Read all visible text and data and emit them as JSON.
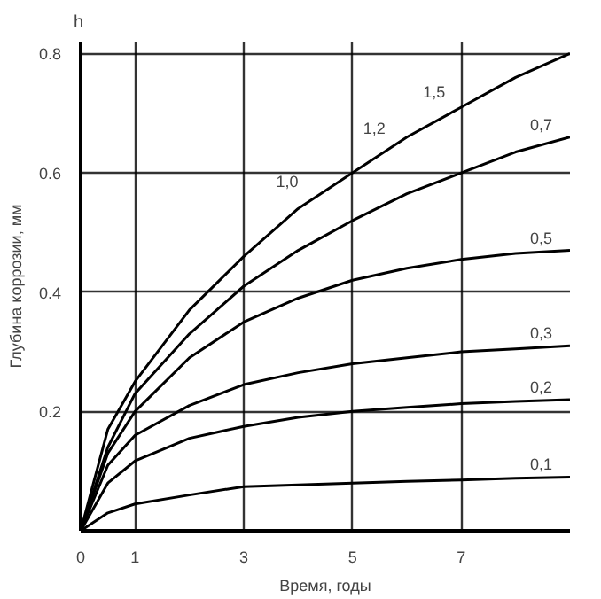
{
  "chart_data": {
    "type": "line",
    "xlabel": "Время, годы",
    "ylabel": "Глубина коррозии, мм",
    "x": [
      0,
      0.5,
      1,
      2,
      3,
      4,
      5,
      6,
      7,
      8,
      9
    ],
    "series": [
      {
        "color": "#000000",
        "values": [
          0,
          0.17,
          0.25,
          0.37,
          0.46,
          0.54,
          0.6,
          0.66,
          0.71,
          0.76,
          0.8
        ]
      },
      {
        "name": "0,7",
        "color": "#000000",
        "values": [
          0,
          0.14,
          0.23,
          0.33,
          0.41,
          0.47,
          0.52,
          0.565,
          0.6,
          0.635,
          0.66
        ]
      },
      {
        "name": "0,5",
        "color": "#000000",
        "values": [
          0,
          0.13,
          0.2,
          0.29,
          0.35,
          0.39,
          0.42,
          0.44,
          0.455,
          0.465,
          0.47
        ]
      },
      {
        "name": "0,3",
        "color": "#000000",
        "values": [
          0,
          0.11,
          0.16,
          0.21,
          0.245,
          0.265,
          0.28,
          0.29,
          0.3,
          0.305,
          0.31
        ]
      },
      {
        "name": "0,2",
        "color": "#000000",
        "values": [
          0,
          0.08,
          0.117,
          0.155,
          0.175,
          0.19,
          0.2,
          0.207,
          0.213,
          0.217,
          0.22
        ]
      },
      {
        "name": "0,1",
        "color": "#000000",
        "values": [
          0,
          0.03,
          0.045,
          0.06,
          0.074,
          0.077,
          0.08,
          0.083,
          0.085,
          0.088,
          0.09
        ]
      }
    ],
    "xlim": [
      0,
      9
    ],
    "ylim": [
      0,
      0.82
    ],
    "xticks": [
      0,
      1,
      3,
      5,
      7
    ],
    "yticks": [
      0.2,
      0.4,
      0.6,
      0.8
    ],
    "grid": true,
    "marker": "none",
    "line_style": "solid",
    "annotations": [
      "h",
      "1,0",
      "1,2",
      "1,5"
    ]
  }
}
